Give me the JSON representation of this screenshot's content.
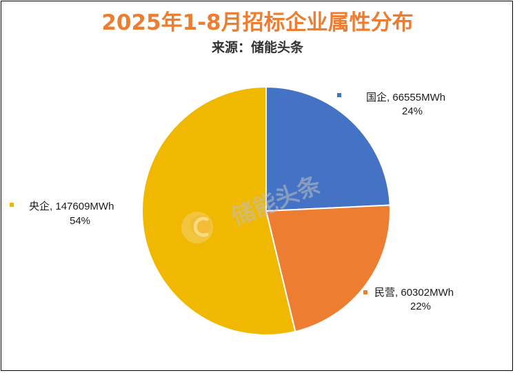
{
  "header": {
    "title": "2025年1-8月招标企业属性分布",
    "subtitle": "来源：储能头条"
  },
  "watermark": {
    "text": "储能头条",
    "icon": "logo-c-icon"
  },
  "colors": {
    "title": "#ED7D31",
    "guoqi": "#4472C4",
    "minying": "#ED7D31",
    "yangqi": "#F0B800"
  },
  "chart_data": {
    "type": "pie",
    "unit": "MWh",
    "slices": [
      {
        "name": "国企",
        "value": 66555,
        "value_label": "66555MWh",
        "percent_label": "24%",
        "color": "#4472C4"
      },
      {
        "name": "民营",
        "value": 60302,
        "value_label": "60302MWh",
        "percent_label": "22%",
        "color": "#ED7D31"
      },
      {
        "name": "央企",
        "value": 147609,
        "value_label": "147609MWh",
        "percent_label": "54%",
        "color": "#F0B800"
      }
    ]
  }
}
